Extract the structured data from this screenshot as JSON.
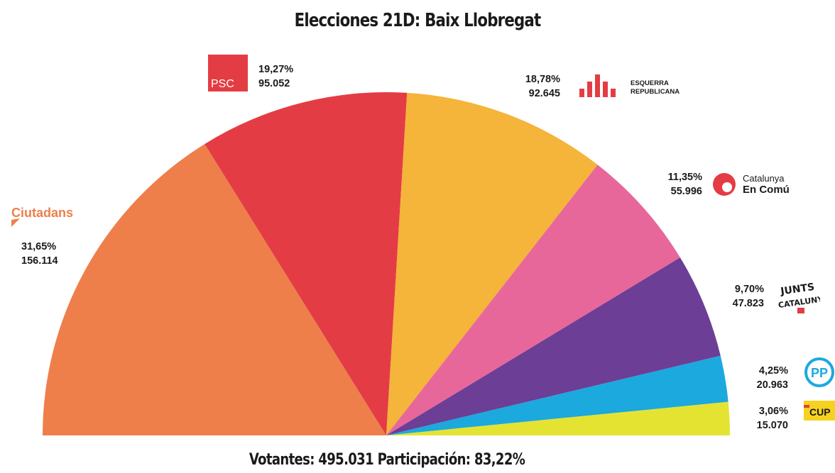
{
  "title": "Elecciones 21D: Baix Llobregat",
  "footer": "Votantes: 495.031 Participación: 83,22%",
  "colors": {
    "Cs": "#ee7f4b",
    "PSC": "#e43c44",
    "ERC": "#f5b43a",
    "CatComu": "#e8679a",
    "JxCat": "#6c3e96",
    "PP": "#1ba9de",
    "CUP": "#e5e332"
  },
  "logos": {
    "psc": "PSC",
    "erc_line1": "ESQUERRA",
    "erc_line2": "REPUBLICANA",
    "catcomu_line1": "Catalunya",
    "catcomu_line2": "En Comú",
    "cs": "Ciutadans",
    "jxcat_line1": "JUNTS",
    "jxcat_line2": "CATALUNYA",
    "pp": "PP",
    "cup": "CUP"
  },
  "chart_data": {
    "type": "pie",
    "title": "Elecciones 21D: Baix Llobregat",
    "shape": "half-donut (semicircle, parliament style)",
    "slices": [
      {
        "party": "Cs",
        "percent": 31.65,
        "votes": 156114,
        "pct_label": "31,65%",
        "votes_label": "156.114",
        "color": "#ee7f4b"
      },
      {
        "party": "PSC",
        "percent": 19.27,
        "votes": 95052,
        "pct_label": "19,27%",
        "votes_label": "95.052",
        "color": "#e43c44"
      },
      {
        "party": "ERC",
        "percent": 18.78,
        "votes": 92645,
        "pct_label": "18,78%",
        "votes_label": "92.645",
        "color": "#f5b43a"
      },
      {
        "party": "CatComu",
        "percent": 11.35,
        "votes": 55996,
        "pct_label": "11,35%",
        "votes_label": "55.996",
        "color": "#e8679a"
      },
      {
        "party": "JxCat",
        "percent": 9.7,
        "votes": 47823,
        "pct_label": "9,70%",
        "votes_label": "47.823",
        "color": "#6c3e96"
      },
      {
        "party": "PP",
        "percent": 4.25,
        "votes": 20963,
        "pct_label": "4,25%",
        "votes_label": "20.963",
        "color": "#1ba9de"
      },
      {
        "party": "CUP",
        "percent": 3.06,
        "votes": 15070,
        "pct_label": "3,06%",
        "votes_label": "15.070",
        "color": "#e5e332"
      }
    ],
    "voters": 495031,
    "turnout_percent": 83.22
  }
}
